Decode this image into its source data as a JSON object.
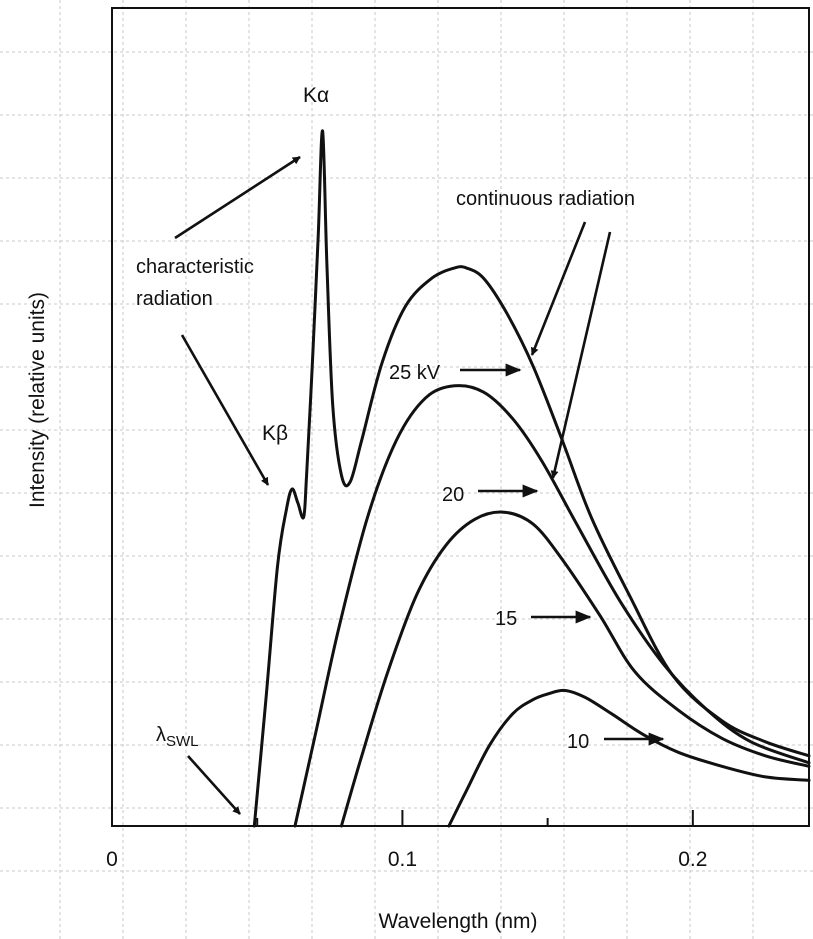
{
  "chart_data": {
    "type": "line",
    "xlabel": "Wavelength (nm)",
    "ylabel": "Intensity (relative units)",
    "xlim": [
      0,
      0.24
    ],
    "ylim": [
      0,
      1
    ],
    "grid": false,
    "x_ticks": [
      {
        "value": 0,
        "label": "0"
      },
      {
        "value": 0.1,
        "label": "0.1"
      },
      {
        "value": 0.2,
        "label": "0.2"
      }
    ],
    "series": [
      {
        "name": "25 kV",
        "label_value": "25 kV",
        "values": [
          [
            0.049,
            0.0
          ],
          [
            0.053,
            0.18
          ],
          [
            0.057,
            0.37
          ],
          [
            0.06,
            0.45
          ],
          [
            0.062,
            0.48
          ],
          [
            0.064,
            0.46
          ],
          [
            0.066,
            0.44
          ],
          [
            0.067,
            0.5
          ],
          [
            0.069,
            0.66
          ],
          [
            0.071,
            0.84
          ],
          [
            0.0725,
            0.99
          ],
          [
            0.074,
            0.8
          ],
          [
            0.076,
            0.6
          ],
          [
            0.079,
            0.5
          ],
          [
            0.082,
            0.49
          ],
          [
            0.086,
            0.55
          ],
          [
            0.093,
            0.66
          ],
          [
            0.101,
            0.74
          ],
          [
            0.11,
            0.78
          ],
          [
            0.118,
            0.795
          ],
          [
            0.122,
            0.795
          ],
          [
            0.128,
            0.78
          ],
          [
            0.136,
            0.73
          ],
          [
            0.145,
            0.655
          ],
          [
            0.155,
            0.55
          ],
          [
            0.165,
            0.44
          ],
          [
            0.178,
            0.33
          ],
          [
            0.193,
            0.215
          ],
          [
            0.21,
            0.15
          ],
          [
            0.225,
            0.12
          ],
          [
            0.24,
            0.1
          ]
        ]
      },
      {
        "name": "20",
        "label_value": "20",
        "values": [
          [
            0.063,
            0.0
          ],
          [
            0.07,
            0.13
          ],
          [
            0.078,
            0.28
          ],
          [
            0.088,
            0.44
          ],
          [
            0.098,
            0.55
          ],
          [
            0.108,
            0.61
          ],
          [
            0.118,
            0.627
          ],
          [
            0.128,
            0.618
          ],
          [
            0.138,
            0.58
          ],
          [
            0.148,
            0.52
          ],
          [
            0.16,
            0.43
          ],
          [
            0.175,
            0.32
          ],
          [
            0.19,
            0.23
          ],
          [
            0.205,
            0.165
          ],
          [
            0.22,
            0.12
          ],
          [
            0.24,
            0.09
          ]
        ]
      },
      {
        "name": "15",
        "label_value": "15",
        "values": [
          [
            0.079,
            0.0
          ],
          [
            0.086,
            0.1
          ],
          [
            0.095,
            0.22
          ],
          [
            0.105,
            0.33
          ],
          [
            0.115,
            0.4
          ],
          [
            0.125,
            0.437
          ],
          [
            0.135,
            0.447
          ],
          [
            0.145,
            0.43
          ],
          [
            0.155,
            0.38
          ],
          [
            0.168,
            0.3
          ],
          [
            0.18,
            0.22
          ],
          [
            0.195,
            0.165
          ],
          [
            0.21,
            0.125
          ],
          [
            0.225,
            0.1
          ],
          [
            0.24,
            0.085
          ]
        ]
      },
      {
        "name": "10",
        "label_value": "10",
        "values": [
          [
            0.116,
            0.0
          ],
          [
            0.122,
            0.05
          ],
          [
            0.13,
            0.115
          ],
          [
            0.138,
            0.16
          ],
          [
            0.145,
            0.18
          ],
          [
            0.15,
            0.188
          ],
          [
            0.156,
            0.193
          ],
          [
            0.163,
            0.183
          ],
          [
            0.172,
            0.16
          ],
          [
            0.183,
            0.13
          ],
          [
            0.195,
            0.105
          ],
          [
            0.21,
            0.085
          ],
          [
            0.225,
            0.07
          ],
          [
            0.24,
            0.065
          ]
        ]
      }
    ],
    "annotations": [
      {
        "id": "k-alpha",
        "text": "Kα"
      },
      {
        "id": "k-beta",
        "text": "Kβ"
      },
      {
        "id": "characteristic",
        "lines": [
          "characteristic",
          "radiation"
        ]
      },
      {
        "id": "continuous",
        "text": "continuous radiation"
      },
      {
        "id": "lambda-swl",
        "main": "λ",
        "sub": "SWL"
      }
    ]
  }
}
